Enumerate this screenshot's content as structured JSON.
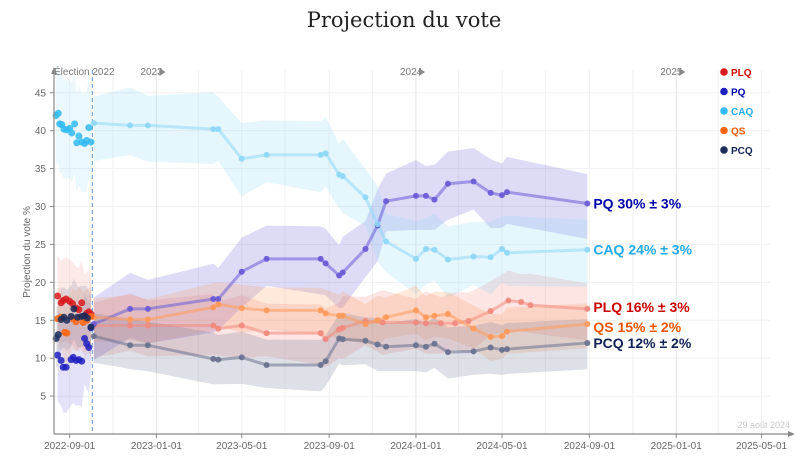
{
  "chart_data": {
    "type": "line",
    "title": "Projection du vote",
    "ylabel": "Projection du vote %",
    "xlabel": "",
    "ylim": [
      0,
      48
    ],
    "xlim": [
      "2022-08-10",
      "2025-06-10"
    ],
    "grid": true,
    "legend_position": "top-right",
    "yticks": [
      5,
      10,
      15,
      20,
      25,
      30,
      35,
      40,
      45
    ],
    "xticks": [
      "2022-09-01",
      "2023-01-01",
      "2023-05-01",
      "2023-09-01",
      "2024-01-01",
      "2024-05-01",
      "2024-09-01",
      "2025-01-01",
      "2025-05-01"
    ],
    "year_markers": [
      {
        "label": "2023",
        "date": "2023-01-01"
      },
      {
        "label": "2024",
        "date": "2024-01-01"
      },
      {
        "label": "2025",
        "date": "2025-01-01"
      }
    ],
    "election_marker": {
      "label": "Élection 2022",
      "date": "2022-10-03"
    },
    "last_update": "29 août 2024",
    "series": [
      {
        "name": "PLQ",
        "color": "#d7191c",
        "light": "#f08a7e",
        "end_label": "PLQ 16% ± 3%",
        "label_color": "#cc0000",
        "pre": [
          [
            "2022-08-15",
            18.2
          ],
          [
            "2022-08-20",
            17.3
          ],
          [
            "2022-08-23",
            17.6
          ],
          [
            "2022-08-27",
            17.8
          ],
          [
            "2022-09-01",
            17.5
          ],
          [
            "2022-09-05",
            17.2
          ],
          [
            "2022-09-10",
            16.6
          ],
          [
            "2022-09-14",
            16.4
          ],
          [
            "2022-09-18",
            17.3
          ],
          [
            "2022-09-22",
            15.6
          ],
          [
            "2022-09-25",
            15.9
          ],
          [
            "2022-09-28",
            16.1
          ],
          [
            "2022-10-01",
            15.8
          ]
        ],
        "points": [
          [
            "2022-10-05",
            14.3
          ],
          [
            "2022-11-25",
            14.3
          ],
          [
            "2022-12-20",
            14.3
          ],
          [
            "2023-03-22",
            14.3
          ],
          [
            "2023-03-29",
            13.9
          ],
          [
            "2023-05-01",
            14.3
          ],
          [
            "2023-06-05",
            13.3
          ],
          [
            "2023-08-20",
            13.3
          ],
          [
            "2023-08-27",
            12.5
          ],
          [
            "2023-09-15",
            13.8
          ],
          [
            "2023-09-20",
            14.0
          ],
          [
            "2023-10-22",
            14.9
          ],
          [
            "2023-11-15",
            14.7
          ],
          [
            "2024-01-01",
            14.7
          ],
          [
            "2024-01-15",
            14.6
          ],
          [
            "2024-02-05",
            14.6
          ],
          [
            "2024-02-25",
            14.6
          ],
          [
            "2024-03-15",
            14.9
          ],
          [
            "2024-04-15",
            16.2
          ],
          [
            "2024-05-10",
            17.6
          ],
          [
            "2024-05-28",
            17.4
          ],
          [
            "2024-06-10",
            17.0
          ],
          [
            "2024-08-29",
            16.5
          ]
        ],
        "band": [
          3.0,
          5.5
        ]
      },
      {
        "name": "PQ",
        "color": "#2020c0",
        "light": "#6a5cd6",
        "end_label": "PQ 30% ± 3%",
        "label_color": "#0000aa",
        "pre": [
          [
            "2022-08-15",
            10.4
          ],
          [
            "2022-08-20",
            9.7
          ],
          [
            "2022-08-23",
            8.8
          ],
          [
            "2022-08-27",
            8.8
          ],
          [
            "2022-09-03",
            9.8
          ],
          [
            "2022-09-06",
            10.1
          ],
          [
            "2022-09-10",
            9.7
          ],
          [
            "2022-09-14",
            9.8
          ],
          [
            "2022-09-18",
            9.6
          ],
          [
            "2022-09-22",
            12.6
          ],
          [
            "2022-09-25",
            11.9
          ],
          [
            "2022-09-28",
            11.4
          ],
          [
            "2022-10-01",
            14.0
          ]
        ],
        "points": [
          [
            "2022-10-05",
            14.5
          ],
          [
            "2022-11-25",
            16.5
          ],
          [
            "2022-12-20",
            16.5
          ],
          [
            "2023-03-22",
            17.8
          ],
          [
            "2023-03-29",
            17.8
          ],
          [
            "2023-05-01",
            21.4
          ],
          [
            "2023-06-05",
            23.1
          ],
          [
            "2023-08-20",
            23.1
          ],
          [
            "2023-08-27",
            22.5
          ],
          [
            "2023-09-15",
            20.9
          ],
          [
            "2023-09-20",
            21.3
          ],
          [
            "2023-10-22",
            24.4
          ],
          [
            "2023-11-08",
            27.5
          ],
          [
            "2023-11-20",
            30.7
          ],
          [
            "2024-01-01",
            31.4
          ],
          [
            "2024-01-15",
            31.4
          ],
          [
            "2024-01-27",
            30.9
          ],
          [
            "2024-02-15",
            33.0
          ],
          [
            "2024-03-22",
            33.3
          ],
          [
            "2024-04-15",
            31.8
          ],
          [
            "2024-05-01",
            31.5
          ],
          [
            "2024-05-08",
            31.9
          ],
          [
            "2024-08-29",
            30.4
          ]
        ],
        "band": [
          3.5,
          6.0
        ]
      },
      {
        "name": "CAQ",
        "color": "#33bbf0",
        "light": "#8fd8f8",
        "end_label": "CAQ 24% ± 3%",
        "label_color": "#22aaee",
        "pre": [
          [
            "2022-08-13",
            42.0
          ],
          [
            "2022-08-16",
            42.3
          ],
          [
            "2022-08-18",
            40.9
          ],
          [
            "2022-08-21",
            40.8
          ],
          [
            "2022-08-24",
            40.2
          ],
          [
            "2022-08-28",
            40.1
          ],
          [
            "2022-09-01",
            40.3
          ],
          [
            "2022-09-04",
            39.7
          ],
          [
            "2022-09-08",
            40.9
          ],
          [
            "2022-09-11",
            38.4
          ],
          [
            "2022-09-14",
            39.3
          ],
          [
            "2022-09-18",
            38.5
          ],
          [
            "2022-09-22",
            38.3
          ],
          [
            "2022-09-25",
            38.7
          ],
          [
            "2022-09-28",
            40.4
          ],
          [
            "2022-10-01",
            38.5
          ]
        ],
        "points": [
          [
            "2022-10-05",
            41.0
          ],
          [
            "2022-11-25",
            40.7
          ],
          [
            "2022-12-20",
            40.7
          ],
          [
            "2023-03-22",
            40.2
          ],
          [
            "2023-03-29",
            40.2
          ],
          [
            "2023-05-01",
            36.3
          ],
          [
            "2023-06-05",
            36.8
          ],
          [
            "2023-08-20",
            36.8
          ],
          [
            "2023-08-27",
            37.0
          ],
          [
            "2023-09-15",
            34.2
          ],
          [
            "2023-09-20",
            34.0
          ],
          [
            "2023-10-22",
            31.2
          ],
          [
            "2023-11-08",
            27.7
          ],
          [
            "2023-11-20",
            25.4
          ],
          [
            "2024-01-01",
            23.1
          ],
          [
            "2024-01-15",
            24.4
          ],
          [
            "2024-01-27",
            24.3
          ],
          [
            "2024-02-15",
            23.0
          ],
          [
            "2024-03-22",
            23.4
          ],
          [
            "2024-04-15",
            23.3
          ],
          [
            "2024-05-01",
            24.4
          ],
          [
            "2024-05-08",
            23.9
          ],
          [
            "2024-08-29",
            24.3
          ]
        ],
        "band": [
          3.5,
          6.5
        ]
      },
      {
        "name": "QS",
        "color": "#ff6611",
        "light": "#ff9a5c",
        "end_label": "QS 15% ± 2%",
        "label_color": "#ee5500",
        "pre": [
          [
            "2022-08-15",
            15.2
          ],
          [
            "2022-08-20",
            15.4
          ],
          [
            "2022-08-25",
            13.4
          ],
          [
            "2022-08-28",
            13.3
          ],
          [
            "2022-09-05",
            15.2
          ],
          [
            "2022-09-10",
            14.8
          ],
          [
            "2022-09-15",
            15.4
          ],
          [
            "2022-09-20",
            14.7
          ],
          [
            "2022-09-25",
            15.0
          ],
          [
            "2022-10-01",
            15.5
          ]
        ],
        "points": [
          [
            "2022-10-05",
            15.4
          ],
          [
            "2022-11-25",
            15.1
          ],
          [
            "2022-12-20",
            15.1
          ],
          [
            "2023-03-22",
            16.7
          ],
          [
            "2023-03-29",
            17.1
          ],
          [
            "2023-05-01",
            16.6
          ],
          [
            "2023-06-05",
            16.3
          ],
          [
            "2023-08-20",
            16.3
          ],
          [
            "2023-08-27",
            15.9
          ],
          [
            "2023-09-15",
            15.6
          ],
          [
            "2023-09-20",
            15.6
          ],
          [
            "2023-10-22",
            14.5
          ],
          [
            "2023-11-08",
            15.0
          ],
          [
            "2023-11-20",
            15.4
          ],
          [
            "2024-01-01",
            16.3
          ],
          [
            "2024-01-15",
            15.4
          ],
          [
            "2024-01-27",
            15.6
          ],
          [
            "2024-02-15",
            15.8
          ],
          [
            "2024-03-22",
            13.9
          ],
          [
            "2024-04-15",
            12.8
          ],
          [
            "2024-05-01",
            12.9
          ],
          [
            "2024-05-08",
            13.5
          ],
          [
            "2024-08-29",
            14.5
          ]
        ],
        "band": [
          2.5,
          4.0
        ]
      },
      {
        "name": "PCQ",
        "color": "#1a2b5c",
        "light": "#6b7390",
        "end_label": "PCQ 12% ± 2%",
        "label_color": "#112255",
        "pre": [
          [
            "2022-08-13",
            12.6
          ],
          [
            "2022-08-16",
            13.1
          ],
          [
            "2022-08-20",
            15.1
          ],
          [
            "2022-08-24",
            15.4
          ],
          [
            "2022-08-28",
            15.0
          ],
          [
            "2022-09-03",
            15.5
          ],
          [
            "2022-09-07",
            16.5
          ],
          [
            "2022-09-12",
            15.4
          ],
          [
            "2022-09-18",
            15.5
          ],
          [
            "2022-09-22",
            15.6
          ],
          [
            "2022-09-26",
            15.3
          ],
          [
            "2022-10-01",
            14.1
          ]
        ],
        "points": [
          [
            "2022-10-05",
            12.9
          ],
          [
            "2022-11-25",
            11.7
          ],
          [
            "2022-12-20",
            11.7
          ],
          [
            "2023-03-22",
            9.9
          ],
          [
            "2023-03-29",
            9.8
          ],
          [
            "2023-05-01",
            10.1
          ],
          [
            "2023-06-05",
            9.1
          ],
          [
            "2023-08-20",
            9.1
          ],
          [
            "2023-08-27",
            9.6
          ],
          [
            "2023-09-15",
            12.6
          ],
          [
            "2023-09-20",
            12.5
          ],
          [
            "2023-10-22",
            12.3
          ],
          [
            "2023-11-08",
            11.8
          ],
          [
            "2023-11-20",
            11.5
          ],
          [
            "2024-01-01",
            11.7
          ],
          [
            "2024-01-15",
            11.5
          ],
          [
            "2024-01-27",
            11.9
          ],
          [
            "2024-02-15",
            10.8
          ],
          [
            "2024-03-22",
            10.9
          ],
          [
            "2024-04-15",
            11.4
          ],
          [
            "2024-05-01",
            11.1
          ],
          [
            "2024-05-08",
            11.2
          ],
          [
            "2024-08-29",
            12.0
          ]
        ],
        "band": [
          3.0,
          4.0
        ]
      }
    ]
  }
}
